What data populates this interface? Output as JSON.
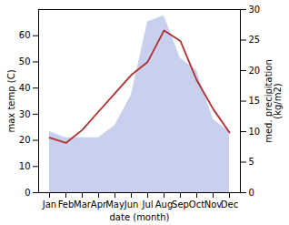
{
  "chart_data": {
    "type": "line",
    "categories": [
      "Jan",
      "Feb",
      "Mar",
      "Apr",
      "May",
      "Jun",
      "Jul",
      "Aug",
      "Sep",
      "Oct",
      "Nov",
      "Dec"
    ],
    "xlabel": "date (month)",
    "ylabel": "max temp (C)",
    "y2label": "med. precipitation\n(kg/m2)",
    "series": [
      {
        "type": "area",
        "axis": "y2",
        "color": "#c8d0ee",
        "values": [
          10,
          9,
          9,
          9,
          11,
          16,
          28,
          29,
          22,
          20,
          12,
          10
        ]
      },
      {
        "type": "line",
        "color": "#b03030",
        "values": [
          21,
          19,
          24,
          31,
          38,
          45,
          50,
          62,
          58,
          43,
          32,
          23
        ]
      }
    ],
    "ylim": [
      0,
      70
    ],
    "yticks": [
      0,
      10,
      20,
      30,
      40,
      50,
      60
    ],
    "y2lim": [
      0,
      30
    ],
    "y2ticks": [
      0,
      5,
      10,
      15,
      20,
      25,
      30
    ],
    "grid": false
  }
}
